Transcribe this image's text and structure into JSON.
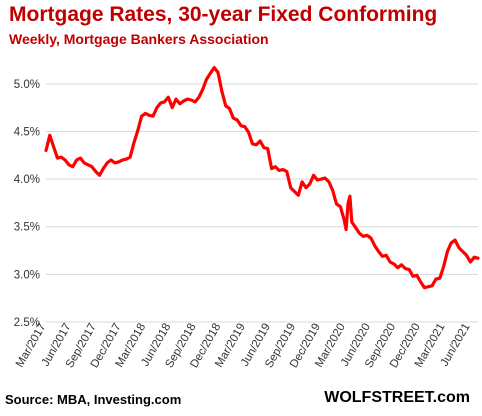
{
  "chart_data": {
    "type": "line",
    "title": "Mortgage Rates, 30-year Fixed Conforming",
    "subtitle": "Weekly, Mortgage Bankers Association",
    "xlabel": "",
    "ylabel": "",
    "ylim": [
      2.5,
      5.25
    ],
    "yticks": [
      "5.0%",
      "4.5%",
      "4.0%",
      "3.5%",
      "3.0%",
      "2.5%"
    ],
    "xticks": [
      "Mar/2017",
      "Jun/2017",
      "Sep/2017",
      "Dec/2017",
      "Mar/2018",
      "Jun/2018",
      "Sep/2018",
      "Dec/2018",
      "Mar/2019",
      "Jun/2019",
      "Sep/2019",
      "Dec/2019",
      "Mar/2020",
      "Jun/2020",
      "Sep/2020",
      "Dec/2020",
      "Mar/2021",
      "Jun/2021"
    ],
    "grid": true,
    "line_color": "#ff0000",
    "series": [
      {
        "values": [
          [
            "2017-03-01",
            4.3
          ],
          [
            "2017-03-15",
            4.46
          ],
          [
            "2017-03-29",
            4.34
          ],
          [
            "2017-04-12",
            4.22
          ],
          [
            "2017-04-26",
            4.23
          ],
          [
            "2017-05-10",
            4.2
          ],
          [
            "2017-05-24",
            4.15
          ],
          [
            "2017-06-07",
            4.13
          ],
          [
            "2017-06-21",
            4.2
          ],
          [
            "2017-07-05",
            4.22
          ],
          [
            "2017-07-19",
            4.17
          ],
          [
            "2017-08-02",
            4.15
          ],
          [
            "2017-08-16",
            4.13
          ],
          [
            "2017-08-30",
            4.08
          ],
          [
            "2017-09-13",
            4.04
          ],
          [
            "2017-09-27",
            4.11
          ],
          [
            "2017-10-11",
            4.17
          ],
          [
            "2017-10-25",
            4.2
          ],
          [
            "2017-11-08",
            4.17
          ],
          [
            "2017-11-22",
            4.18
          ],
          [
            "2017-12-06",
            4.2
          ],
          [
            "2017-12-20",
            4.21
          ],
          [
            "2018-01-03",
            4.23
          ],
          [
            "2018-01-17",
            4.38
          ],
          [
            "2018-01-31",
            4.51
          ],
          [
            "2018-02-14",
            4.66
          ],
          [
            "2018-02-28",
            4.69
          ],
          [
            "2018-03-14",
            4.67
          ],
          [
            "2018-03-28",
            4.66
          ],
          [
            "2018-04-11",
            4.75
          ],
          [
            "2018-04-25",
            4.8
          ],
          [
            "2018-05-09",
            4.81
          ],
          [
            "2018-05-23",
            4.86
          ],
          [
            "2018-06-06",
            4.75
          ],
          [
            "2018-06-20",
            4.84
          ],
          [
            "2018-07-04",
            4.79
          ],
          [
            "2018-07-18",
            4.82
          ],
          [
            "2018-08-01",
            4.84
          ],
          [
            "2018-08-15",
            4.83
          ],
          [
            "2018-08-29",
            4.81
          ],
          [
            "2018-09-12",
            4.86
          ],
          [
            "2018-09-26",
            4.94
          ],
          [
            "2018-10-10",
            5.05
          ],
          [
            "2018-10-24",
            5.11
          ],
          [
            "2018-11-07",
            5.17
          ],
          [
            "2018-11-21",
            5.12
          ],
          [
            "2018-12-05",
            4.92
          ],
          [
            "2018-12-19",
            4.77
          ],
          [
            "2019-01-02",
            4.74
          ],
          [
            "2019-01-16",
            4.64
          ],
          [
            "2019-01-30",
            4.62
          ],
          [
            "2019-02-13",
            4.56
          ],
          [
            "2019-02-27",
            4.55
          ],
          [
            "2019-03-13",
            4.49
          ],
          [
            "2019-03-27",
            4.37
          ],
          [
            "2019-04-10",
            4.36
          ],
          [
            "2019-04-24",
            4.4
          ],
          [
            "2019-05-08",
            4.33
          ],
          [
            "2019-05-22",
            4.32
          ],
          [
            "2019-06-05",
            4.11
          ],
          [
            "2019-06-19",
            4.13
          ],
          [
            "2019-07-03",
            4.09
          ],
          [
            "2019-07-17",
            4.1
          ],
          [
            "2019-07-31",
            4.08
          ],
          [
            "2019-08-14",
            3.91
          ],
          [
            "2019-08-28",
            3.87
          ],
          [
            "2019-09-11",
            3.83
          ],
          [
            "2019-09-25",
            3.97
          ],
          [
            "2019-10-09",
            3.91
          ],
          [
            "2019-10-23",
            3.95
          ],
          [
            "2019-11-06",
            4.04
          ],
          [
            "2019-11-20",
            3.99
          ],
          [
            "2019-12-04",
            4.0
          ],
          [
            "2019-12-18",
            4.01
          ],
          [
            "2020-01-01",
            3.97
          ],
          [
            "2020-01-15",
            3.88
          ],
          [
            "2020-01-29",
            3.74
          ],
          [
            "2020-02-12",
            3.71
          ],
          [
            "2020-02-26",
            3.57
          ],
          [
            "2020-03-04",
            3.47
          ],
          [
            "2020-03-11",
            3.74
          ],
          [
            "2020-03-18",
            3.82
          ],
          [
            "2020-03-25",
            3.55
          ],
          [
            "2020-04-08",
            3.49
          ],
          [
            "2020-04-22",
            3.43
          ],
          [
            "2020-05-06",
            3.4
          ],
          [
            "2020-05-20",
            3.41
          ],
          [
            "2020-06-03",
            3.38
          ],
          [
            "2020-06-17",
            3.3
          ],
          [
            "2020-07-01",
            3.24
          ],
          [
            "2020-07-15",
            3.19
          ],
          [
            "2020-07-29",
            3.2
          ],
          [
            "2020-08-12",
            3.13
          ],
          [
            "2020-08-26",
            3.11
          ],
          [
            "2020-09-09",
            3.07
          ],
          [
            "2020-09-23",
            3.1
          ],
          [
            "2020-10-07",
            3.06
          ],
          [
            "2020-10-21",
            3.05
          ],
          [
            "2020-11-04",
            2.98
          ],
          [
            "2020-11-18",
            2.99
          ],
          [
            "2020-12-02",
            2.92
          ],
          [
            "2020-12-16",
            2.86
          ],
          [
            "2020-12-30",
            2.87
          ],
          [
            "2021-01-13",
            2.88
          ],
          [
            "2021-01-27",
            2.95
          ],
          [
            "2021-02-10",
            2.96
          ],
          [
            "2021-02-24",
            3.08
          ],
          [
            "2021-03-10",
            3.24
          ],
          [
            "2021-03-24",
            3.33
          ],
          [
            "2021-04-07",
            3.36
          ],
          [
            "2021-04-21",
            3.28
          ],
          [
            "2021-05-05",
            3.24
          ],
          [
            "2021-05-19",
            3.2
          ],
          [
            "2021-06-02",
            3.13
          ],
          [
            "2021-06-16",
            3.18
          ],
          [
            "2021-06-30",
            3.17
          ]
        ]
      }
    ]
  },
  "footer": {
    "source": "Source: MBA, Investing.com",
    "brand": "WOLFSTREET.com"
  }
}
